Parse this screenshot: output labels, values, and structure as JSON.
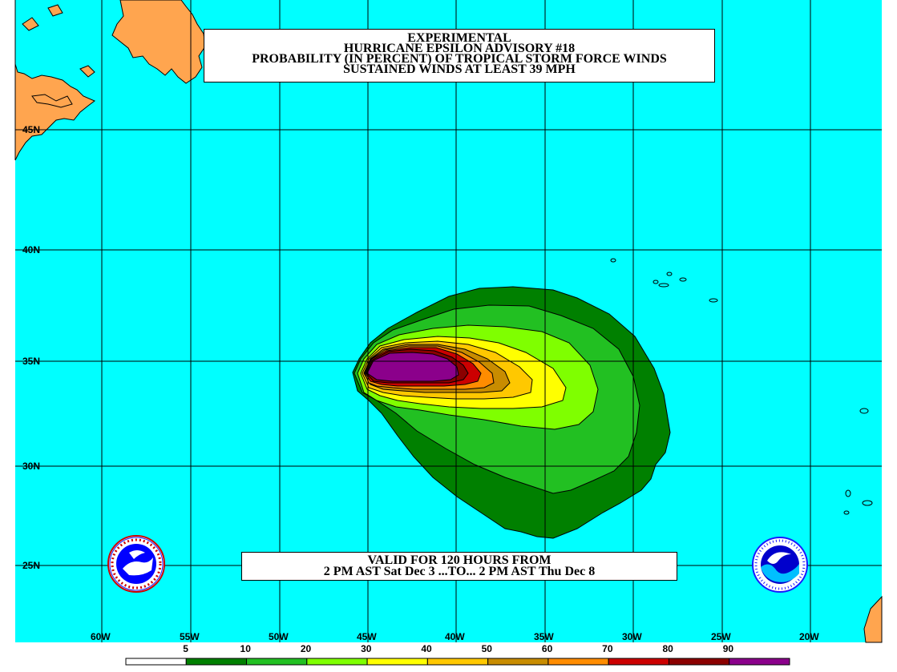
{
  "title": {
    "line1": "EXPERIMENTAL",
    "line2": "HURRICANE EPSILON ADVISORY #18",
    "line3": "PROBABILITY (IN PERCENT) OF TROPICAL STORM FORCE WINDS",
    "line4": "SUSTAINED WINDS AT LEAST 39 MPH"
  },
  "valid": {
    "line1": "VALID FOR 120 HOURS FROM",
    "line2": "2 PM AST Sat Dec 3 ...TO... 2 PM AST Thu Dec 8"
  },
  "latitudes": [
    "45N",
    "40N",
    "35N",
    "30N",
    "25N"
  ],
  "longitudes": [
    "60W",
    "55W",
    "50W",
    "45W",
    "40W",
    "35W",
    "30W",
    "25W",
    "20W"
  ],
  "legend": {
    "labels": [
      "5",
      "10",
      "20",
      "30",
      "40",
      "50",
      "60",
      "70",
      "80",
      "90"
    ],
    "colors": [
      "#ffffff",
      "#008000",
      "#22c022",
      "#7fff00",
      "#ffff00",
      "#ffc800",
      "#c88c00",
      "#ff8c00",
      "#cc0000",
      "#8b0000",
      "#8b008b"
    ]
  },
  "colors": {
    "ocean": "#00ffff",
    "land": "#ffa54f",
    "grid": "#000000"
  },
  "logos": {
    "left": "national-weather-service-logo",
    "right": "noaa-logo"
  }
}
